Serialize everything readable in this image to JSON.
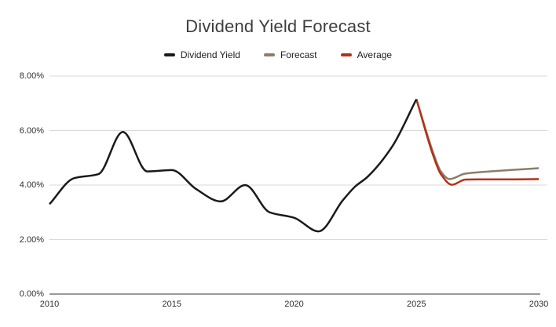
{
  "chart_data": {
    "type": "line",
    "title": "Dividend Yield Forecast",
    "xlabel": "",
    "ylabel": "",
    "xlim": [
      2010,
      2030
    ],
    "ylim": [
      0,
      8
    ],
    "grid": true,
    "legend_position": "top",
    "x_ticks": [
      {
        "value": 2010,
        "label": "2010"
      },
      {
        "value": 2015,
        "label": "2015"
      },
      {
        "value": 2020,
        "label": "2020"
      },
      {
        "value": 2025,
        "label": "2025"
      },
      {
        "value": 2030,
        "label": "2030"
      }
    ],
    "y_ticks": [
      {
        "value": 0,
        "label": "0.00%"
      },
      {
        "value": 2,
        "label": "2.00%"
      },
      {
        "value": 4,
        "label": "4.00%"
      },
      {
        "value": 6,
        "label": "6.00%"
      },
      {
        "value": 8,
        "label": "8.00%"
      }
    ],
    "series": [
      {
        "name": "Dividend Yield",
        "color": "#1a1a1a",
        "points": [
          [
            2010,
            3.3
          ],
          [
            2011,
            4.25
          ],
          [
            2012,
            4.4
          ],
          [
            2013,
            5.95
          ],
          [
            2014,
            4.5
          ],
          [
            2015,
            4.55
          ],
          [
            2016,
            3.85
          ],
          [
            2017,
            3.4
          ],
          [
            2018,
            4.0
          ],
          [
            2019,
            3.0
          ],
          [
            2020,
            2.8
          ],
          [
            2021,
            2.3
          ],
          [
            2022,
            3.45
          ],
          [
            2022.5,
            3.95
          ],
          [
            2023,
            4.3
          ],
          [
            2024,
            5.4
          ],
          [
            2025,
            7.15
          ]
        ]
      },
      {
        "name": "Forecast",
        "color": "#8c7d69",
        "points": [
          [
            2025,
            7.15
          ],
          [
            2025.7,
            5.15
          ],
          [
            2026,
            4.5
          ],
          [
            2026.35,
            4.22
          ],
          [
            2027,
            4.42
          ],
          [
            2028,
            4.5
          ],
          [
            2029,
            4.56
          ],
          [
            2030,
            4.62
          ]
        ]
      },
      {
        "name": "Average",
        "color": "#b43215",
        "points": [
          [
            2025,
            7.15
          ],
          [
            2025.7,
            5.05
          ],
          [
            2026,
            4.4
          ],
          [
            2026.45,
            4.01
          ],
          [
            2027,
            4.2
          ],
          [
            2027.5,
            4.21
          ],
          [
            2028,
            4.21
          ],
          [
            2029,
            4.21
          ],
          [
            2030,
            4.22
          ]
        ]
      }
    ],
    "style": {
      "background": "#ffffff",
      "title_color": "#3d3d3d",
      "legend_text_color": "#212121",
      "grid_color": "#d9d9d9",
      "axis_color": "#333333",
      "tick_label_color": "#2e2e2e"
    }
  }
}
